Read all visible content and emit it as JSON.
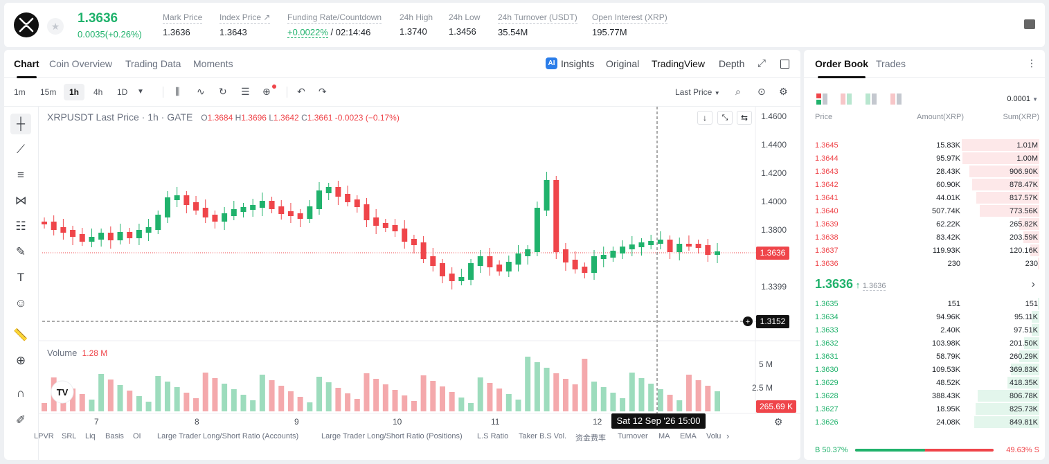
{
  "header": {
    "last_price": "1.3636",
    "change": "0.0035(+0.26%)",
    "stats": [
      {
        "label": "Mark Price",
        "value": "1.3636"
      },
      {
        "label": "Index Price ↗",
        "value": "1.3643"
      },
      {
        "label": "Funding Rate/Countdown",
        "value_rate": "+0.0022%",
        "value_countdown": " / 02:14:46"
      },
      {
        "label": "24h High",
        "value": "1.3740"
      },
      {
        "label": "24h Low",
        "value": "1.3456"
      },
      {
        "label": "24h Turnover (USDT)",
        "value": "35.54M"
      },
      {
        "label": "Open Interest (XRP)",
        "value": "195.77M"
      }
    ]
  },
  "chart_tabs": [
    "Chart",
    "Coin Overview",
    "Trading Data",
    "Moments"
  ],
  "view_tabs": [
    "Insights",
    "Original",
    "TradingView",
    "Depth"
  ],
  "timeframes": [
    "1m",
    "15m",
    "1h",
    "4h",
    "1D"
  ],
  "price_source": "Last Price",
  "info": {
    "symbol": "XRPUSDT Last Price · 1h · GATE",
    "o": "1.3684",
    "h": "1.3696",
    "l": "1.3642",
    "c": "1.3661",
    "chg": "-0.0023 (−0.17%)"
  },
  "y_ticks": [
    "1.4600",
    "1.4400",
    "1.4200",
    "1.4000",
    "1.3800",
    "1.3636",
    "1.3399",
    "1.3152"
  ],
  "current_price_tag": "1.3636",
  "crosshair_price": "1.3152",
  "volume": {
    "label": "Volume",
    "value": "1.28 M",
    "ticks": [
      "5 M",
      "2.5 M"
    ],
    "tag": "265.69 K"
  },
  "x_ticks": [
    "7",
    "8",
    "9",
    "10",
    "11",
    "12"
  ],
  "crosshair_time": "Sat 12 Sep '26   15:00",
  "indicators": [
    "LPVR",
    "SRL",
    "Liq",
    "Basis",
    "OI",
    "Large Trader Long/Short Ratio (Accounts)",
    "Large Trader Long/Short Ratio (Positions)",
    "L.S Ratio",
    "Taker B.S Vol.",
    "资金费率",
    "Turnover",
    "MA",
    "EMA",
    "Volu"
  ],
  "orderbook": {
    "tabs": [
      "Order Book",
      "Trades"
    ],
    "precision": "0.0001",
    "cols": [
      "Price",
      "Amount(XRP)",
      "Sum(XRP)"
    ],
    "asks": [
      [
        "1.3645",
        "15.83K",
        "1.01M"
      ],
      [
        "1.3644",
        "95.97K",
        "1.00M"
      ],
      [
        "1.3643",
        "28.43K",
        "906.90K"
      ],
      [
        "1.3642",
        "60.90K",
        "878.47K"
      ],
      [
        "1.3641",
        "44.01K",
        "817.57K"
      ],
      [
        "1.3640",
        "507.74K",
        "773.56K"
      ],
      [
        "1.3639",
        "62.22K",
        "265.82K"
      ],
      [
        "1.3638",
        "83.42K",
        "203.59K"
      ],
      [
        "1.3637",
        "119.93K",
        "120.16K"
      ],
      [
        "1.3636",
        "230",
        "230"
      ]
    ],
    "mid_price": "1.3636",
    "mid_mark": "1.3636",
    "bids": [
      [
        "1.3635",
        "151",
        "151"
      ],
      [
        "1.3634",
        "94.96K",
        "95.11K"
      ],
      [
        "1.3633",
        "2.40K",
        "97.51K"
      ],
      [
        "1.3632",
        "103.98K",
        "201.50K"
      ],
      [
        "1.3631",
        "58.79K",
        "260.29K"
      ],
      [
        "1.3630",
        "109.53K",
        "369.83K"
      ],
      [
        "1.3629",
        "48.52K",
        "418.35K"
      ],
      [
        "1.3628",
        "388.43K",
        "806.78K"
      ],
      [
        "1.3627",
        "18.95K",
        "825.73K"
      ],
      [
        "1.3626",
        "24.08K",
        "849.81K"
      ]
    ],
    "buy_ratio": "B 50.37%",
    "sell_ratio": "49.63% S",
    "buy_fraction": 0.5037
  },
  "colors": {
    "up": "#20b26c",
    "down": "#ef454a"
  }
}
